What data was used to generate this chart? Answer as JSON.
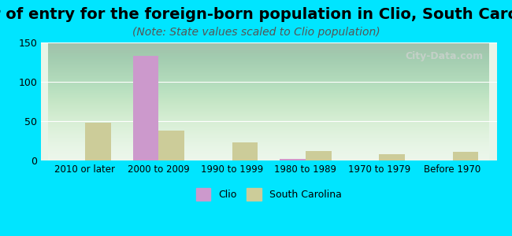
{
  "title": "Year of entry for the foreign-born population in Clio, South Carolina",
  "subtitle": "(Note: State values scaled to Clio population)",
  "categories": [
    "2010 or later",
    "2000 to 2009",
    "1990 to 1999",
    "1980 to 1989",
    "1970 to 1979",
    "Before 1970"
  ],
  "clio_values": [
    0,
    133,
    0,
    2,
    0,
    0
  ],
  "sc_values": [
    48,
    38,
    23,
    12,
    8,
    11
  ],
  "clio_color": "#cc99cc",
  "sc_color": "#cccc99",
  "ylim": [
    0,
    150
  ],
  "yticks": [
    0,
    50,
    100,
    150
  ],
  "background_outer": "#00e5ff",
  "background_inner_top": "#f0fff0",
  "background_inner_bottom": "#e8f5e9",
  "bar_width": 0.35,
  "title_fontsize": 14,
  "subtitle_fontsize": 10,
  "watermark": "City-Data.com"
}
